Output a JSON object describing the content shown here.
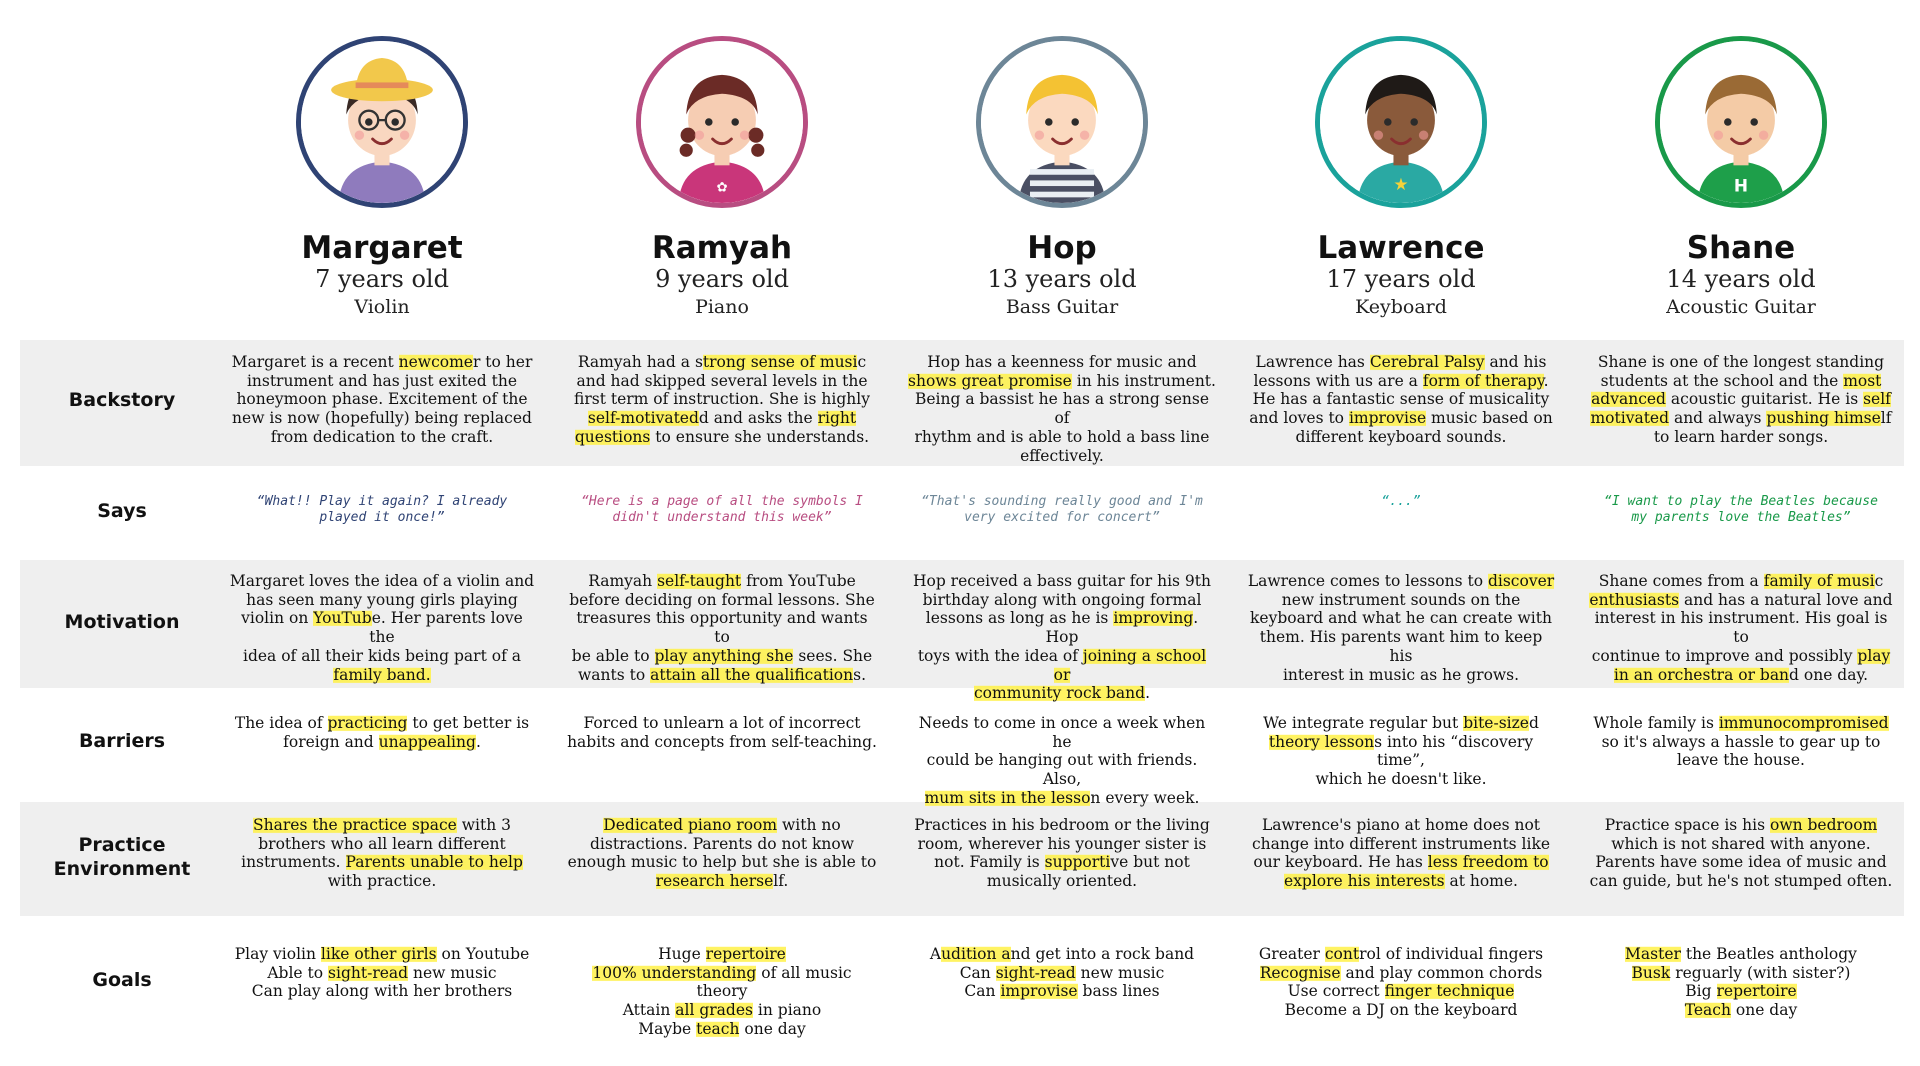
{
  "colors": {
    "margaret": "#2f4374",
    "ramyah": "#b84d81",
    "hop": "#6d8697",
    "lawrence": "#1aa29b",
    "shane": "#199949",
    "band": "#efefef",
    "highlight": "#fff046"
  },
  "row_labels": {
    "backstory": "Backstory",
    "says": "Says",
    "motivation": "Motivation",
    "barriers": "Barriers",
    "practice_1": "Practice",
    "practice_2": "Environment",
    "goals": "Goals"
  },
  "personas": [
    {
      "name": "Margaret",
      "age": "7 years old",
      "instrument": "Violin",
      "avatar_icon": "girl-with-hat-and-glasses-icon",
      "backstory": [
        [
          "Margaret is a recent ",
          "newcome",
          "r to her"
        ],
        [
          "instrument and has just exited the"
        ],
        [
          "honeymoon phase. Excitement of the"
        ],
        [
          "new is now (hopefully) being replaced"
        ],
        [
          "from dedication to the craft."
        ]
      ],
      "says": [
        "“What!! Play it again? I already",
        "played it once!”"
      ],
      "motivation": [
        [
          "Margaret loves the idea of a violin and"
        ],
        [
          "has seen many young girls playing"
        ],
        [
          "violin on ",
          "YouTub",
          "e. Her parents love the"
        ],
        [
          "idea of all their kids being part of a"
        ],
        [
          "",
          "family band."
        ]
      ],
      "barriers": [
        [
          "The idea of ",
          "practicing",
          " to get better is"
        ],
        [
          "foreign and ",
          "unappealing",
          "."
        ]
      ],
      "practice": [
        [
          "",
          "Shares the practice space",
          " with 3"
        ],
        [
          "brothers who all learn different"
        ],
        [
          "instruments. ",
          "Parents unable to help"
        ],
        [
          "with practice."
        ]
      ],
      "goals": [
        [
          "Play violin ",
          "like other girls",
          " on Youtube"
        ],
        [
          "Able to ",
          "sight-read",
          " new music"
        ],
        [
          "Can play along with her brothers"
        ]
      ]
    },
    {
      "name": "Ramyah",
      "age": "9 years old",
      "instrument": "Piano",
      "avatar_icon": "girl-with-pigtails-icon",
      "backstory": [
        [
          "Ramyah had a s",
          "trong sense of musi",
          "c"
        ],
        [
          "and had skipped several levels in the"
        ],
        [
          "first term of instruction. She is highly"
        ],
        [
          "",
          "self-motivated",
          "d and asks the ",
          "right"
        ],
        [
          "",
          "questions",
          " to ensure she understands."
        ]
      ],
      "says": [
        "“Here is a page of all the symbols I",
        "didn't understand this week”"
      ],
      "motivation": [
        [
          "Ramyah ",
          "self-taught",
          " from YouTube"
        ],
        [
          "before deciding on formal lessons. She"
        ],
        [
          "treasures this opportunity and wants to"
        ],
        [
          "be able to ",
          "play anything she",
          " sees. She"
        ],
        [
          "wants to ",
          "attain all the qualification",
          "s."
        ]
      ],
      "barriers": [
        [
          "Forced to unlearn a lot of incorrect"
        ],
        [
          "habits and concepts from self-teaching."
        ]
      ],
      "practice": [
        [
          "",
          "Dedicated piano room",
          " with no"
        ],
        [
          "distractions. Parents do not know"
        ],
        [
          "enough music to help but she is able to"
        ],
        [
          "",
          "research herse",
          "lf."
        ]
      ],
      "goals": [
        [
          "Huge ",
          "repertoire"
        ],
        [
          "",
          "100% understanding",
          " of all music theory"
        ],
        [
          "Attain ",
          "all grades",
          " in piano"
        ],
        [
          "Maybe ",
          "teach",
          " one day"
        ]
      ]
    },
    {
      "name": "Hop",
      "age": "13 years old",
      "instrument": "Bass Guitar",
      "avatar_icon": "boy-waving-icon",
      "backstory": [
        [
          "Hop has a keenness for music and"
        ],
        [
          "",
          "shows great promise",
          " in his instrument."
        ],
        [
          "Being a bassist he has a strong sense of"
        ],
        [
          "rhythm and is able to hold a bass line"
        ],
        [
          "effectively."
        ]
      ],
      "says": [
        "“That's sounding really good and I'm",
        "very excited for concert”"
      ],
      "motivation": [
        [
          "Hop received a bass guitar for his 9th"
        ],
        [
          "birthday along with ongoing formal"
        ],
        [
          "lessons as long as he is ",
          "improving",
          ". Hop"
        ],
        [
          "toys with the idea of ",
          "joining a school or"
        ],
        [
          "",
          "community rock band",
          "."
        ]
      ],
      "barriers": [
        [
          "Needs to come in once a week when he"
        ],
        [
          "could be hanging out with friends. Also,"
        ],
        [
          "",
          "mum sits in the lesso",
          "n every week."
        ]
      ],
      "practice": [
        [
          "Practices in his bedroom or the living"
        ],
        [
          "room, wherever his younger sister is"
        ],
        [
          "not. Family is ",
          "supporti",
          "ve but not"
        ],
        [
          "musically oriented."
        ]
      ],
      "goals": [
        [
          "A",
          "udition a",
          "nd get into a rock band"
        ],
        [
          "Can ",
          "sight-read",
          " new music"
        ],
        [
          "Can ",
          "improvise",
          " bass lines"
        ]
      ]
    },
    {
      "name": "Lawrence",
      "age": "17 years old",
      "instrument": "Keyboard",
      "avatar_icon": "boy-thumbs-up-icon",
      "backstory": [
        [
          "Lawrence has ",
          "Cerebral Palsy",
          " and his"
        ],
        [
          "lessons with us are a ",
          "form of therapy",
          "."
        ],
        [
          "He has a fantastic sense of musicality"
        ],
        [
          "and loves to ",
          "improvise",
          " music based on"
        ],
        [
          "different keyboard sounds."
        ]
      ],
      "says": [
        "“...”"
      ],
      "motivation": [
        [
          "Lawrence comes to lessons to ",
          "discover"
        ],
        [
          "new instrument sounds on the"
        ],
        [
          "keyboard and what he can create with"
        ],
        [
          "them. His parents want him to keep his"
        ],
        [
          "interest in music as he grows."
        ]
      ],
      "barriers": [
        [
          "We integrate regular but ",
          "bite-size",
          "d"
        ],
        [
          "",
          "theory lesson",
          "s into his “discovery time”,"
        ],
        [
          "which he doesn't like."
        ]
      ],
      "practice": [
        [
          "Lawrence's piano at home does not"
        ],
        [
          "change into different instruments like"
        ],
        [
          "our keyboard. He has ",
          "less freedom to"
        ],
        [
          "",
          "explore his interests",
          " at home."
        ]
      ],
      "goals": [
        [
          "Greater ",
          "cont",
          "rol of individual fingers"
        ],
        [
          "",
          "Recognise",
          " and play common chords"
        ],
        [
          "Use correct ",
          "finger technique"
        ],
        [
          "Become a DJ on the keyboard"
        ]
      ]
    },
    {
      "name": "Shane",
      "age": "14 years old",
      "instrument": "Acoustic Guitar",
      "avatar_icon": "boy-waving-green-shirt-icon",
      "backstory": [
        [
          "Shane is one of the longest standing"
        ],
        [
          "students at the school and the ",
          "most"
        ],
        [
          "",
          "advanced",
          " acoustic guitarist. He is ",
          "self"
        ],
        [
          "",
          "motivated",
          " and always ",
          "pushing himse",
          "lf"
        ],
        [
          "to learn harder songs."
        ]
      ],
      "says": [
        "“I want to play the Beatles because",
        "my parents love the Beatles”"
      ],
      "motivation": [
        [
          "Shane comes from a ",
          "family of musi",
          "c"
        ],
        [
          "",
          "enthusiasts",
          " and has a natural love and"
        ],
        [
          "interest in his instrument. His goal is to"
        ],
        [
          "continue to improve and possibly ",
          "play"
        ],
        [
          "",
          "in an orchestra or ban",
          "d one day."
        ]
      ],
      "barriers": [
        [
          "Whole family is ",
          "immunocompromised"
        ],
        [
          "so it's always a hassle to gear up to"
        ],
        [
          "leave the house."
        ]
      ],
      "practice": [
        [
          "Practice space is his ",
          "own bedroom"
        ],
        [
          "which is not shared with anyone."
        ],
        [
          "Parents have some idea of music and"
        ],
        [
          "can guide, but he's not stumped often."
        ]
      ],
      "goals": [
        [
          "",
          "Master",
          " the Beatles anthology"
        ],
        [
          "",
          "Busk",
          " reguarly (with sister?)"
        ],
        [
          "Big ",
          "repertoire"
        ],
        [
          "",
          "Teach",
          " one day"
        ]
      ]
    }
  ]
}
